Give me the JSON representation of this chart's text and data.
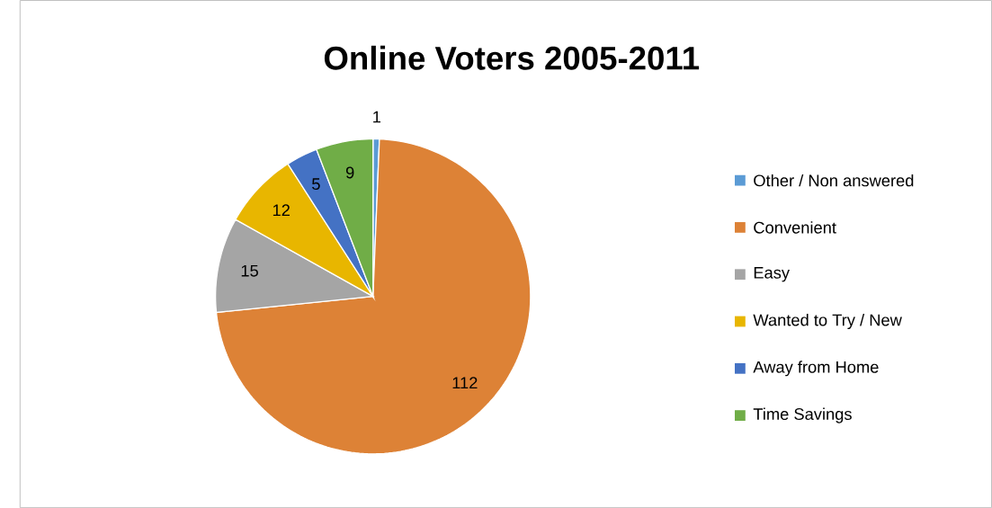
{
  "chart_data": {
    "type": "pie",
    "title": "Online Voters 2005-2011",
    "categories": [
      "Other / Non answered",
      "Convenient",
      "Easy",
      "Wanted to Try / New",
      "Away from Home",
      "Time Savings"
    ],
    "values": [
      1,
      112,
      15,
      12,
      5,
      9
    ],
    "colors": [
      "#5b9bd5",
      "#dd8236",
      "#a5a5a5",
      "#e8b600",
      "#4472c4",
      "#70ad47"
    ],
    "data_labels": true,
    "legend": "right"
  }
}
